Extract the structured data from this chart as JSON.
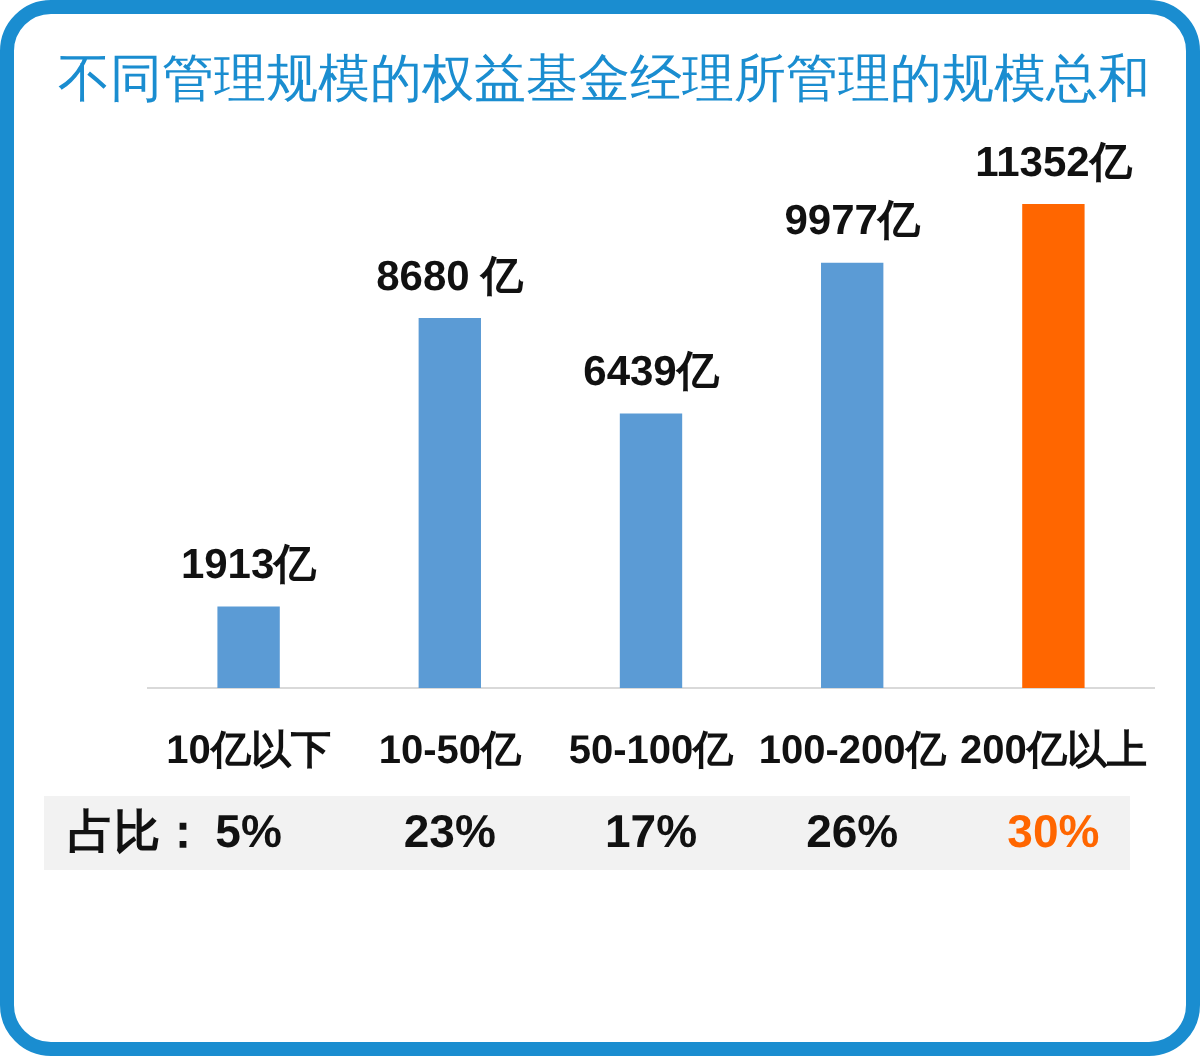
{
  "chart_data": {
    "type": "bar",
    "title": "不同管理规模的权益基金经理所管理的规模总和",
    "categories": [
      "10亿以下",
      "10-50亿",
      "50-100亿",
      "100-200亿",
      "200亿以上"
    ],
    "values": [
      1913,
      8680,
      6439,
      9977,
      11352
    ],
    "colors": [
      "#5b9bd5",
      "#5b9bd5",
      "#5b9bd5",
      "#5b9bd5",
      "#ff6600"
    ],
    "value_labels": [
      "1913亿",
      "8680 亿",
      "6439亿",
      "9977亿",
      "11352亿"
    ],
    "annotations": [
      "占比：",
      "5%",
      "23%",
      "17%",
      "26%",
      "30%"
    ]
  }
}
